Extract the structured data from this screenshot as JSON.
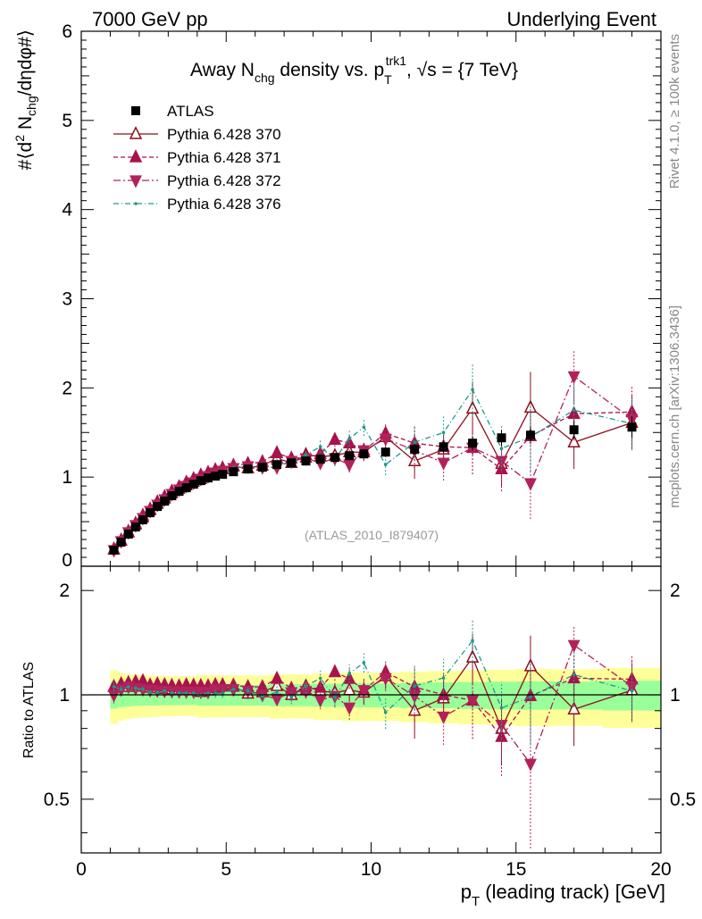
{
  "header": {
    "left": "7000 GeV pp",
    "right": "Underlying Event"
  },
  "side": {
    "rivet": "Rivet 4.1.0, ≥ 100k events",
    "mcplots": "mcplots.cern.ch [arXiv:1306.3436]"
  },
  "chart_data": {
    "type": "line",
    "title": {
      "pre": "Away N",
      "sub1": "chg",
      "mid": " density vs. p",
      "sub2": "T",
      "sup2": "trk1",
      "post": ", √s = {7 TeV}"
    },
    "ylabel": {
      "pre": "#⟨d",
      "sup": "2",
      "mid": " N",
      "sub": "chg",
      "post": "/dηdφ#⟩"
    },
    "xlabel": {
      "p": "p",
      "sub": "T",
      "rest": " (leading track) [GeV]"
    },
    "ratio_ylabel": "Ratio to ATLAS",
    "watermark": "(ATLAS_2010_I879407)",
    "xlim": [
      0,
      20
    ],
    "ylim": [
      0,
      6
    ],
    "ratio_ylim": [
      0.35,
      2.35
    ],
    "x_ticks": [
      "0",
      "5",
      "10",
      "15",
      "20"
    ],
    "y_ticks": [
      "0",
      "1",
      "2",
      "3",
      "4",
      "5",
      "6"
    ],
    "ratio_ticks": [
      "0.5",
      "1",
      "2"
    ],
    "x": [
      1.125,
      1.375,
      1.625,
      1.875,
      2.125,
      2.375,
      2.625,
      2.875,
      3.125,
      3.375,
      3.625,
      3.875,
      4.125,
      4.375,
      4.625,
      4.875,
      5.25,
      5.75,
      6.25,
      6.75,
      7.25,
      7.75,
      8.25,
      8.75,
      9.25,
      9.75,
      10.5,
      11.5,
      12.5,
      13.5,
      14.5,
      15.5,
      17.0,
      19.0
    ],
    "atlas": {
      "name": "ATLAS",
      "values": [
        0.18,
        0.27,
        0.36,
        0.44,
        0.52,
        0.6,
        0.67,
        0.73,
        0.79,
        0.84,
        0.88,
        0.92,
        0.96,
        0.99,
        1.01,
        1.03,
        1.06,
        1.09,
        1.11,
        1.14,
        1.16,
        1.18,
        1.2,
        1.22,
        1.24,
        1.26,
        1.28,
        1.31,
        1.34,
        1.38,
        1.44,
        1.47,
        1.53,
        1.56
      ],
      "errors": [
        0.01,
        0.01,
        0.01,
        0.01,
        0.01,
        0.01,
        0.01,
        0.01,
        0.01,
        0.01,
        0.01,
        0.01,
        0.02,
        0.02,
        0.02,
        0.02,
        0.02,
        0.02,
        0.02,
        0.03,
        0.03,
        0.03,
        0.04,
        0.04,
        0.05,
        0.05,
        0.05,
        0.06,
        0.07,
        0.08,
        0.09,
        0.1,
        0.1,
        0.12
      ],
      "band_inner": 0.06,
      "band_outer": 0.12
    },
    "series": [
      {
        "name": "Pythia 6.428 370",
        "color": "#8c0f1e",
        "dash": "",
        "marker": "triangle-up-open",
        "values": [
          0.19,
          0.29,
          0.38,
          0.47,
          0.55,
          0.63,
          0.7,
          0.76,
          0.82,
          0.87,
          0.91,
          0.95,
          0.98,
          1.02,
          1.06,
          1.09,
          1.12,
          1.1,
          1.13,
          1.21,
          1.16,
          1.25,
          1.23,
          1.24,
          1.28,
          1.28,
          1.45,
          1.18,
          1.31,
          1.77,
          1.15,
          1.78,
          1.39,
          1.61
        ],
        "errors": [
          0.01,
          0.01,
          0.01,
          0.01,
          0.01,
          0.01,
          0.01,
          0.02,
          0.02,
          0.02,
          0.02,
          0.02,
          0.02,
          0.02,
          0.03,
          0.03,
          0.03,
          0.04,
          0.04,
          0.05,
          0.05,
          0.06,
          0.07,
          0.08,
          0.09,
          0.1,
          0.12,
          0.2,
          0.2,
          0.3,
          0.25,
          0.4,
          0.3,
          0.3
        ]
      },
      {
        "name": "Pythia 6.428 371",
        "color": "#a8134d",
        "dash": "5,3",
        "marker": "triangle-up",
        "values": [
          0.19,
          0.29,
          0.39,
          0.48,
          0.57,
          0.64,
          0.72,
          0.78,
          0.84,
          0.89,
          0.94,
          0.98,
          1.02,
          1.05,
          1.08,
          1.1,
          1.13,
          1.15,
          1.17,
          1.27,
          1.21,
          1.22,
          1.26,
          1.42,
          1.38,
          1.3,
          1.49,
          1.38,
          1.34,
          1.33,
          1.09,
          1.46,
          1.71,
          1.73
        ],
        "errors": [
          0.01,
          0.01,
          0.01,
          0.01,
          0.01,
          0.01,
          0.01,
          0.02,
          0.02,
          0.02,
          0.02,
          0.02,
          0.02,
          0.02,
          0.03,
          0.03,
          0.03,
          0.04,
          0.04,
          0.05,
          0.05,
          0.06,
          0.07,
          0.08,
          0.09,
          0.1,
          0.12,
          0.2,
          0.2,
          0.3,
          0.25,
          0.4,
          0.3,
          0.3
        ]
      },
      {
        "name": "Pythia 6.428 372",
        "color": "#b1225b",
        "dash": "8,3,2,3",
        "marker": "triangle-down",
        "values": [
          0.18,
          0.28,
          0.38,
          0.46,
          0.54,
          0.62,
          0.69,
          0.75,
          0.81,
          0.86,
          0.9,
          0.94,
          0.98,
          1.01,
          1.05,
          1.07,
          1.1,
          1.12,
          1.11,
          1.11,
          1.18,
          1.21,
          1.16,
          1.21,
          1.14,
          1.3,
          1.43,
          1.3,
          1.16,
          1.33,
          1.18,
          0.93,
          2.13,
          1.65
        ],
        "errors": [
          0.01,
          0.01,
          0.01,
          0.01,
          0.01,
          0.01,
          0.01,
          0.02,
          0.02,
          0.02,
          0.02,
          0.02,
          0.02,
          0.02,
          0.03,
          0.03,
          0.03,
          0.04,
          0.04,
          0.05,
          0.05,
          0.06,
          0.07,
          0.08,
          0.09,
          0.1,
          0.12,
          0.2,
          0.2,
          0.3,
          0.25,
          0.4,
          0.3,
          0.3
        ]
      },
      {
        "name": "Pythia 6.428 376",
        "color": "#1a9a8c",
        "dash": "6,3,1,3",
        "marker": "dot",
        "values": [
          0.19,
          0.28,
          0.38,
          0.46,
          0.54,
          0.61,
          0.68,
          0.75,
          0.8,
          0.85,
          0.89,
          0.93,
          0.96,
          1.0,
          1.02,
          1.04,
          1.1,
          1.12,
          1.1,
          1.16,
          1.14,
          1.25,
          1.34,
          1.2,
          1.43,
          1.56,
          1.14,
          1.39,
          1.5,
          1.98,
          1.32,
          1.45,
          1.75,
          1.6
        ],
        "errors": [
          0.01,
          0.01,
          0.01,
          0.01,
          0.01,
          0.01,
          0.01,
          0.02,
          0.02,
          0.02,
          0.02,
          0.02,
          0.02,
          0.02,
          0.03,
          0.03,
          0.03,
          0.04,
          0.04,
          0.05,
          0.05,
          0.06,
          0.07,
          0.08,
          0.09,
          0.1,
          0.12,
          0.2,
          0.2,
          0.3,
          0.25,
          0.4,
          0.3,
          0.3
        ]
      }
    ]
  }
}
